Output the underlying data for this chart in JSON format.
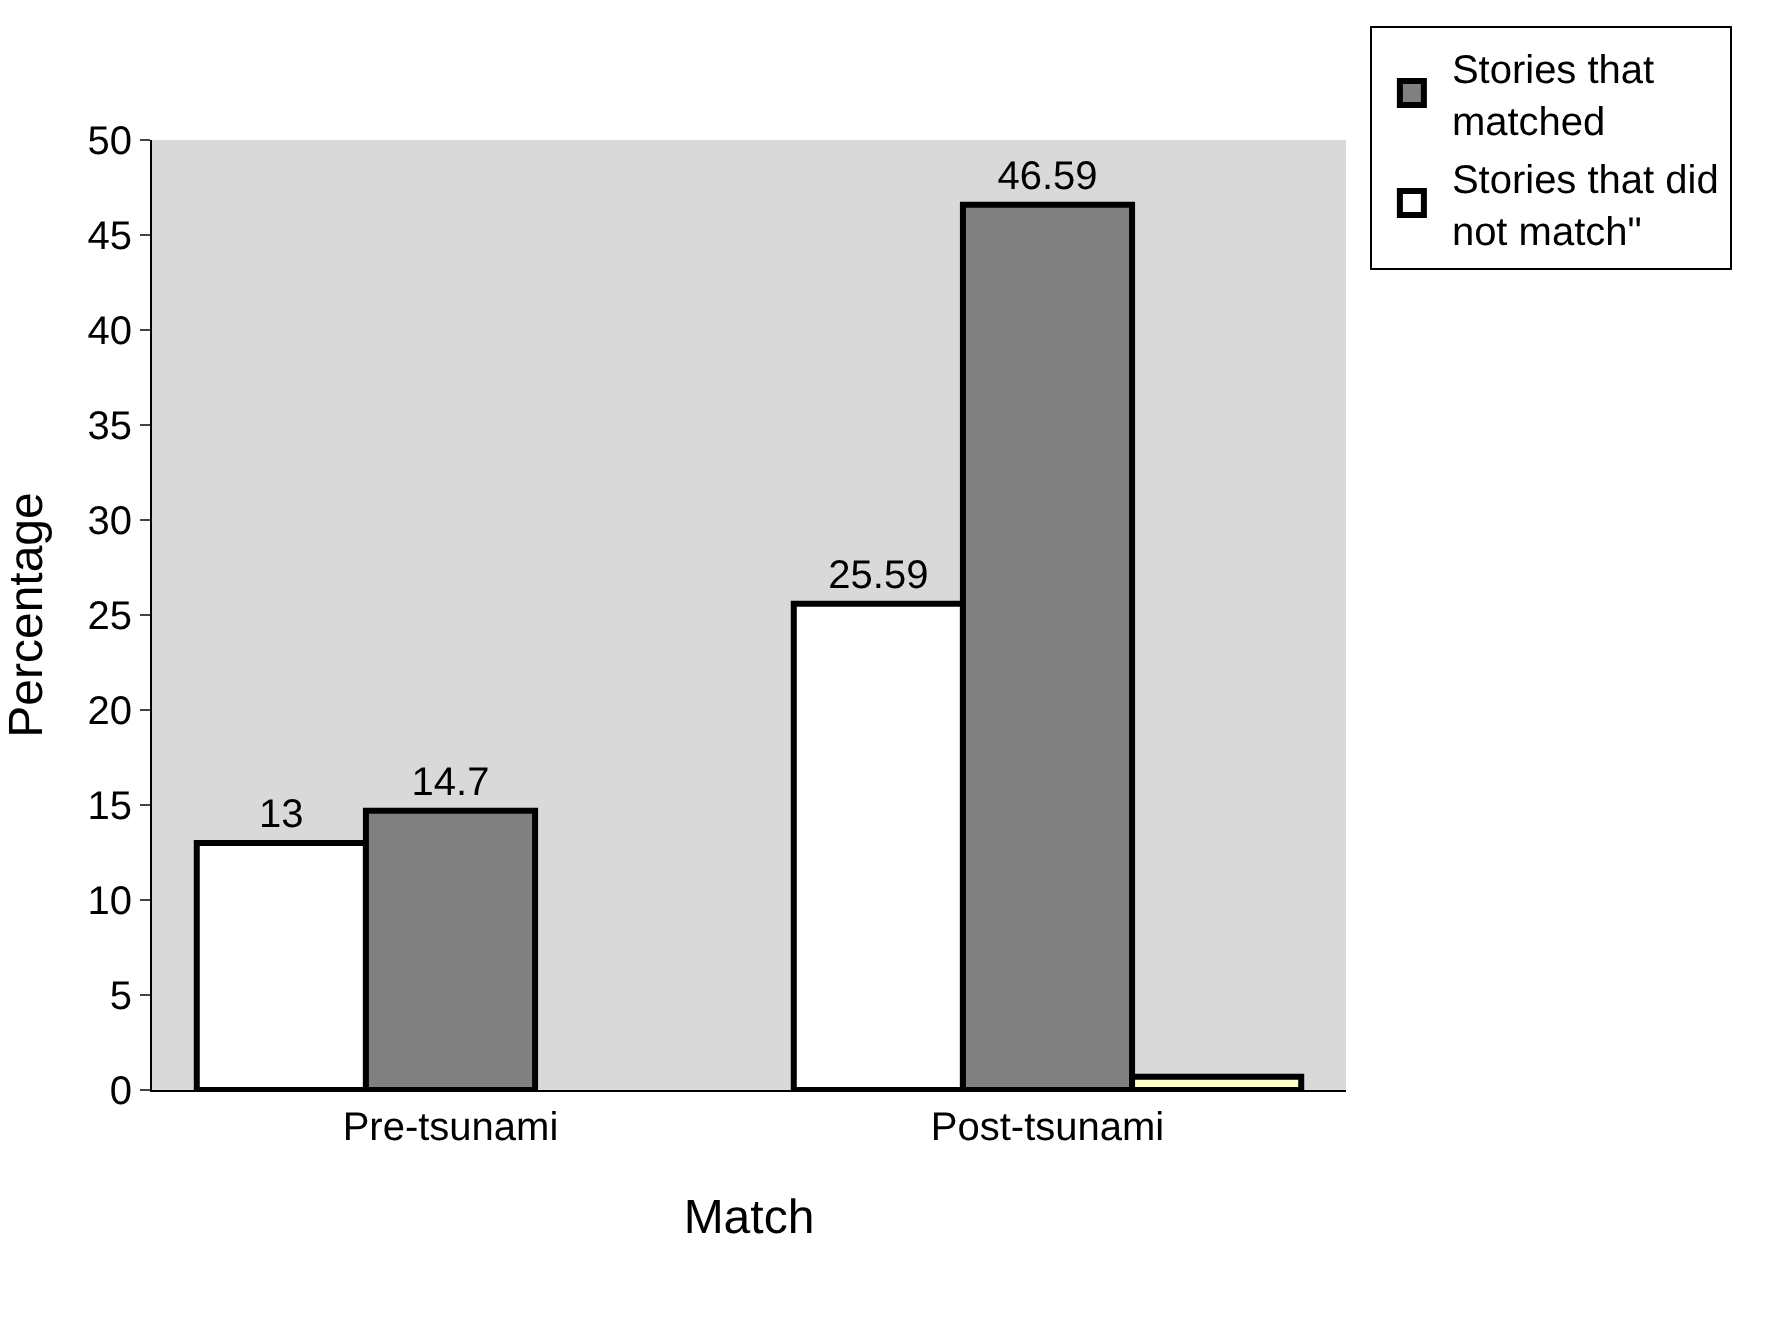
{
  "chart_data": {
    "type": "bar",
    "xlabel": "Match",
    "ylabel": "Percentage",
    "categories": [
      "Pre-tsunami",
      "Post-tsunami"
    ],
    "series": [
      {
        "name": "Stories that did not match\"",
        "color": "#ffffff",
        "values": [
          13,
          25.59
        ],
        "value_labels": [
          "13",
          "25.59"
        ]
      },
      {
        "name": "Stories that matched",
        "color": "#808080",
        "values": [
          14.7,
          46.59
        ],
        "value_labels": [
          "14.7",
          "46.59"
        ]
      },
      {
        "color": "#ffffcc",
        "values": [
          null,
          0.7
        ],
        "value_labels": [
          null,
          null
        ]
      }
    ],
    "ylim": [
      0,
      50
    ],
    "yticks": [
      0,
      5,
      10,
      15,
      20,
      25,
      30,
      35,
      40,
      45,
      50
    ],
    "grid": false,
    "legend": "top right"
  }
}
